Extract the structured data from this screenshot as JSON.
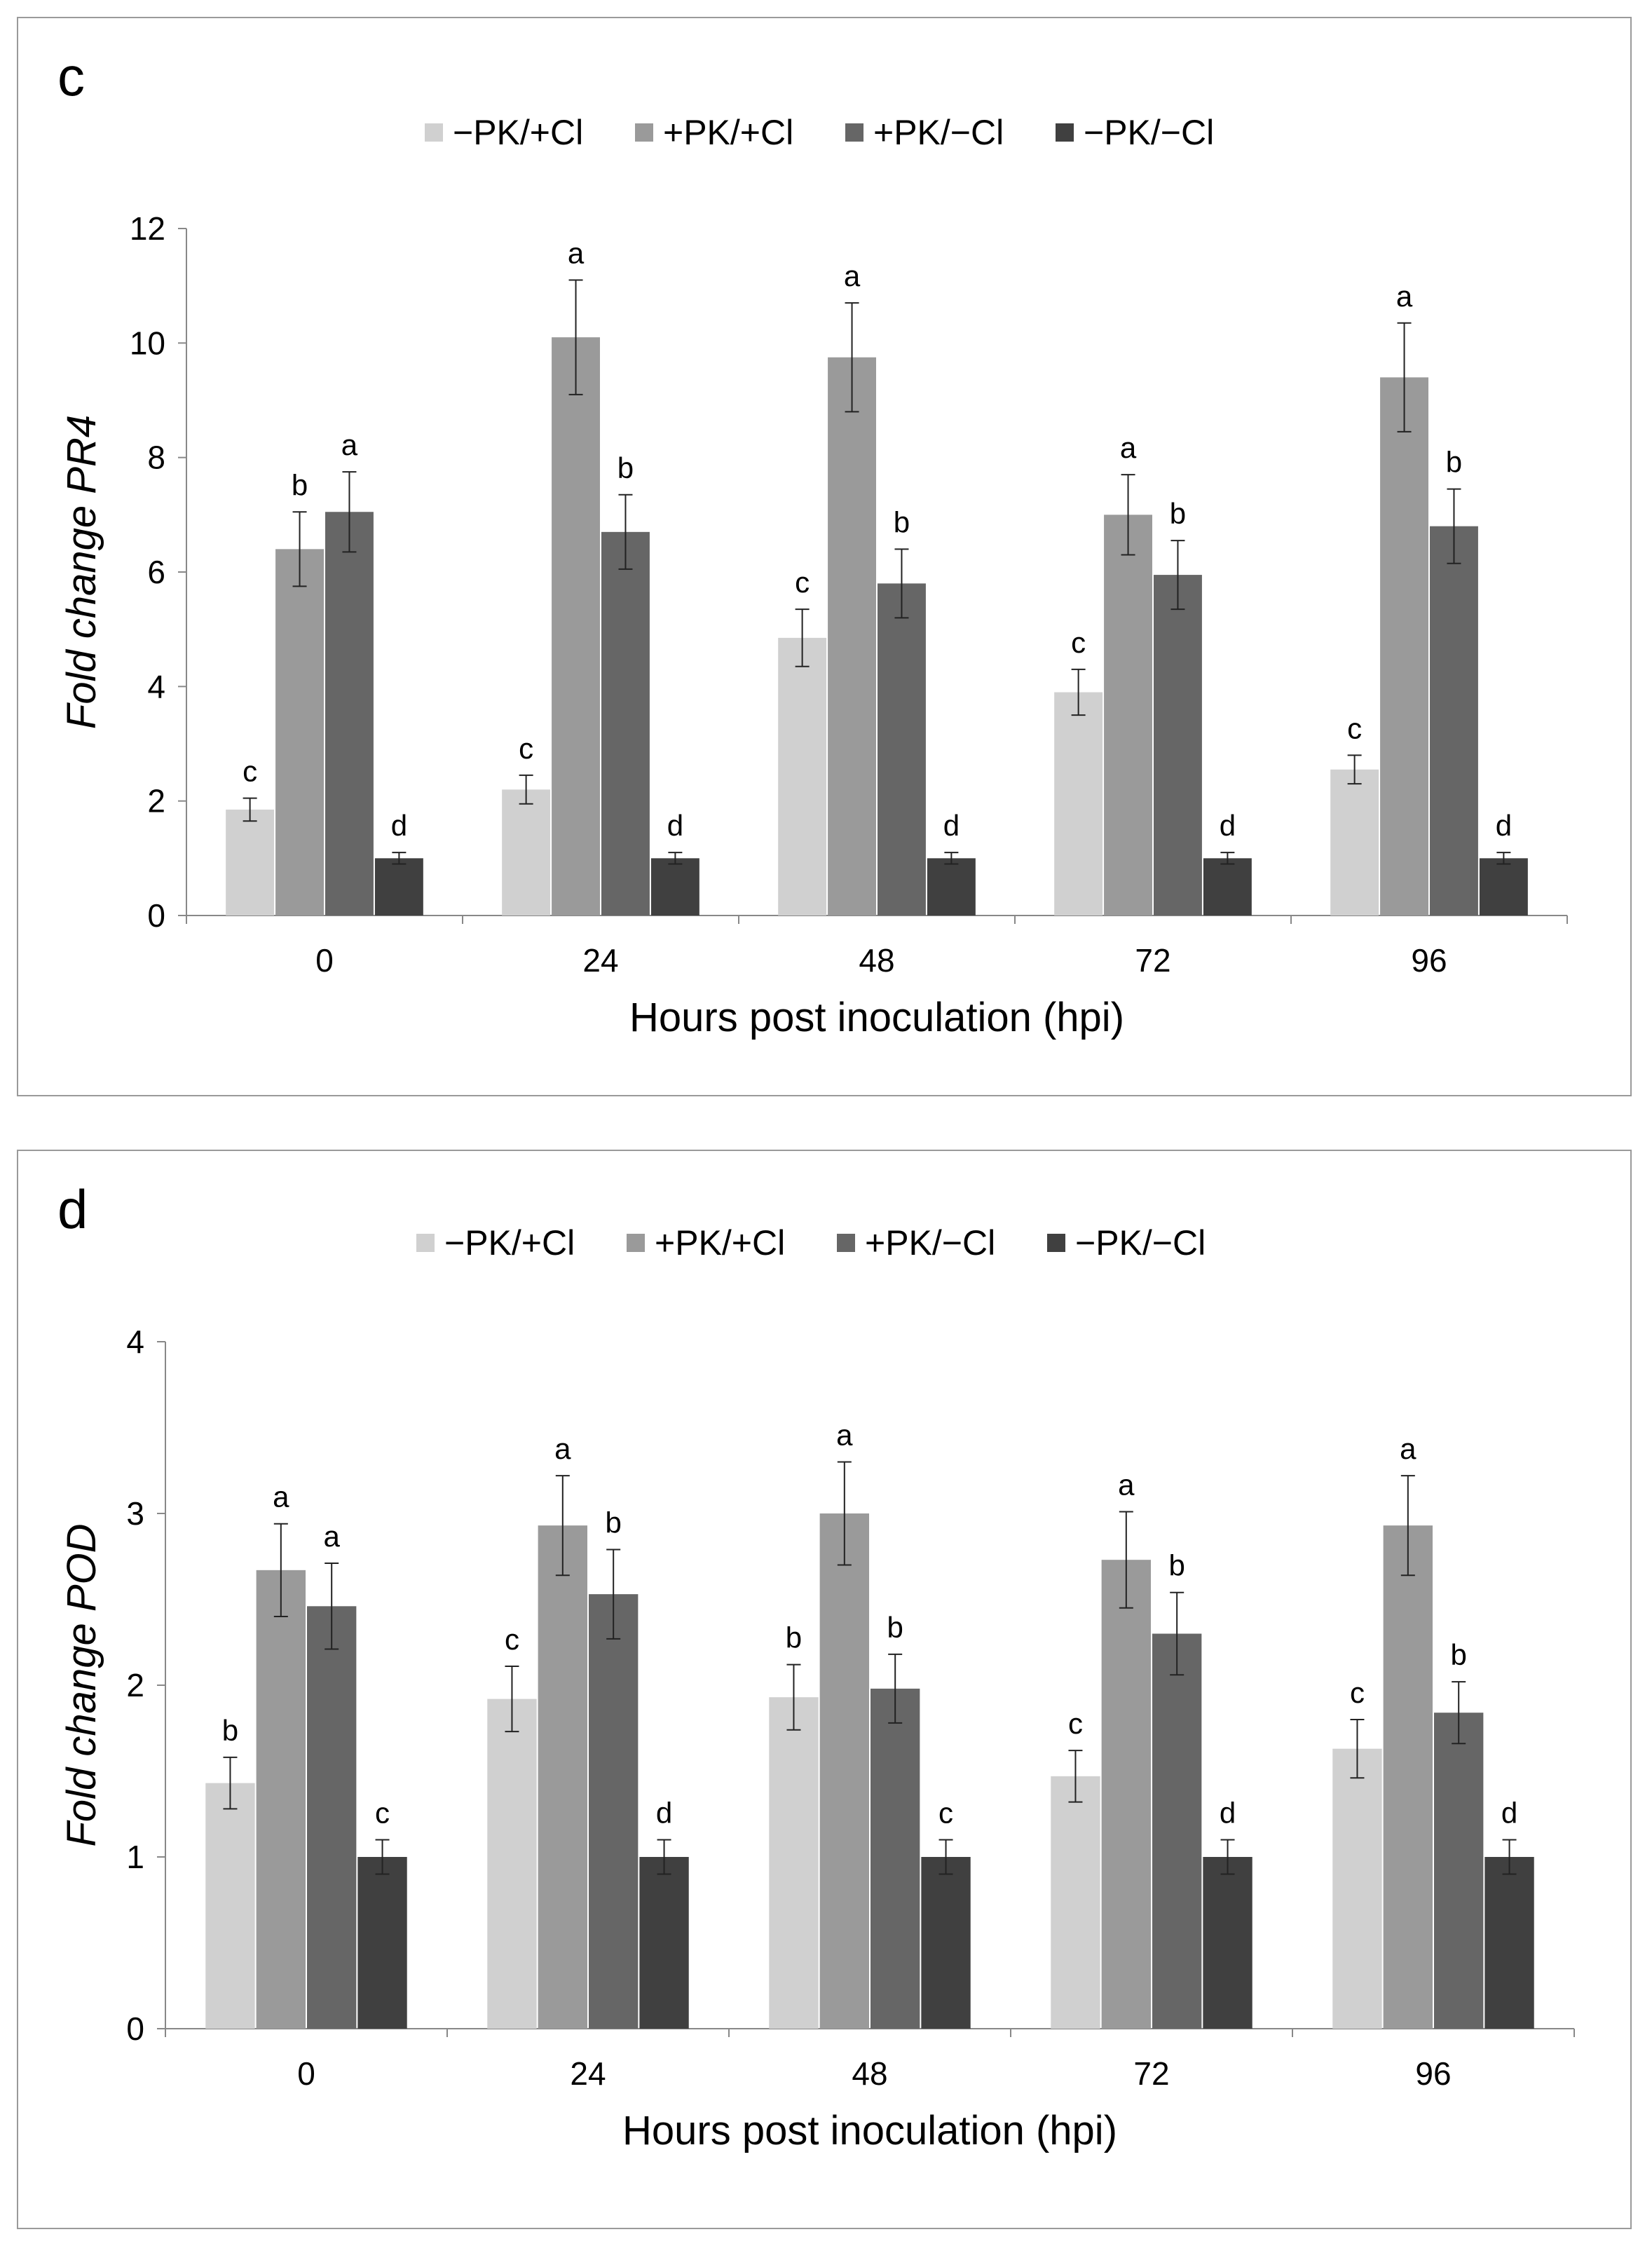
{
  "chart_data": [
    {
      "type": "bar",
      "panel_label": "c",
      "title": "",
      "xlabel": "Hours post inoculation (hpi)",
      "ylabel": "Fold change PR4",
      "ylim": [
        0,
        12
      ],
      "yticks": [
        "0",
        "2",
        "4",
        "6",
        "8",
        "10",
        "12"
      ],
      "categories": [
        "0",
        "24",
        "48",
        "72",
        "96"
      ],
      "legend_position": "top",
      "grid": false,
      "series": [
        {
          "name": "−PK/+Cl",
          "color": "#d0d0d0",
          "values": [
            1.85,
            2.2,
            4.85,
            3.9,
            2.55
          ],
          "errors": [
            0.2,
            0.25,
            0.5,
            0.4,
            0.25
          ],
          "letters": [
            "c",
            "c",
            "c",
            "c",
            "c"
          ]
        },
        {
          "name": "+PK/+Cl",
          "color": "#9a9a9a",
          "values": [
            6.4,
            10.1,
            9.75,
            7.0,
            9.4
          ],
          "errors": [
            0.65,
            1.0,
            0.95,
            0.7,
            0.95
          ],
          "letters": [
            "b",
            "a",
            "a",
            "a",
            "a"
          ]
        },
        {
          "name": "+PK/−Cl",
          "color": "#666666",
          "values": [
            7.05,
            6.7,
            5.8,
            5.95,
            6.8
          ],
          "errors": [
            0.7,
            0.65,
            0.6,
            0.6,
            0.65
          ],
          "letters": [
            "a",
            "b",
            "b",
            "b",
            "b"
          ]
        },
        {
          "name": "−PK/−Cl",
          "color": "#404040",
          "values": [
            1.0,
            1.0,
            1.0,
            1.0,
            1.0
          ],
          "errors": [
            0.1,
            0.1,
            0.1,
            0.1,
            0.1
          ],
          "letters": [
            "d",
            "d",
            "d",
            "d",
            "d"
          ]
        }
      ]
    },
    {
      "type": "bar",
      "panel_label": "d",
      "title": "",
      "xlabel": "Hours post inoculation (hpi)",
      "ylabel": "Fold change POD",
      "ylim": [
        0,
        4
      ],
      "yticks": [
        "0",
        "1",
        "2",
        "3",
        "4"
      ],
      "categories": [
        "0",
        "24",
        "48",
        "72",
        "96"
      ],
      "legend_position": "top",
      "grid": false,
      "series": [
        {
          "name": "−PK/+Cl",
          "color": "#d0d0d0",
          "values": [
            1.43,
            1.92,
            1.93,
            1.47,
            1.63
          ],
          "errors": [
            0.15,
            0.19,
            0.19,
            0.15,
            0.17
          ],
          "letters": [
            "b",
            "c",
            "b",
            "c",
            "c"
          ]
        },
        {
          "name": "+PK/+Cl",
          "color": "#9a9a9a",
          "values": [
            2.67,
            2.93,
            3.0,
            2.73,
            2.93
          ],
          "errors": [
            0.27,
            0.29,
            0.3,
            0.28,
            0.29
          ],
          "letters": [
            "a",
            "a",
            "a",
            "a",
            "a"
          ]
        },
        {
          "name": "+PK/−Cl",
          "color": "#666666",
          "values": [
            2.46,
            2.53,
            1.98,
            2.3,
            1.84
          ],
          "errors": [
            0.25,
            0.26,
            0.2,
            0.24,
            0.18
          ],
          "letters": [
            "a",
            "b",
            "b",
            "b",
            "b"
          ]
        },
        {
          "name": "−PK/−Cl",
          "color": "#404040",
          "values": [
            1.0,
            1.0,
            1.0,
            1.0,
            1.0
          ],
          "errors": [
            0.1,
            0.1,
            0.1,
            0.1,
            0.1
          ],
          "letters": [
            "c",
            "d",
            "c",
            "d",
            "d"
          ]
        }
      ]
    }
  ]
}
